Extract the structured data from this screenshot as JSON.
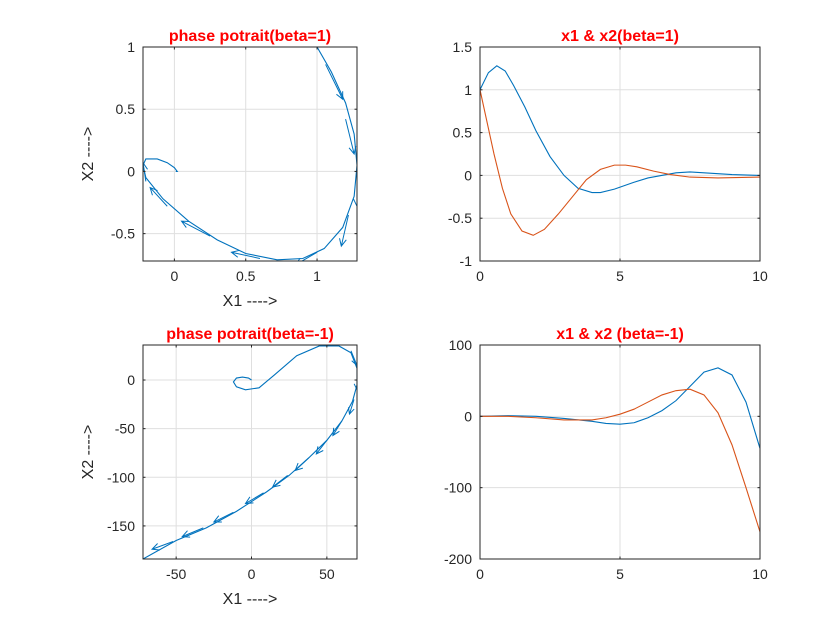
{
  "colors": {
    "title": "#ff0000",
    "series1": "#0072bd",
    "series2": "#d95319",
    "axes": "#262626",
    "grid": "#dfdfdf"
  },
  "chart_data": [
    {
      "id": "phase1",
      "type": "line",
      "title": "phase potrait(beta=1)",
      "xlabel": "X1 ---->",
      "ylabel": "X2 ---->",
      "xlim": [
        -0.22,
        1.28
      ],
      "ylim": [
        -0.72,
        1.0
      ],
      "xticks": [
        0,
        0.5,
        1
      ],
      "xtick_labels": [
        "0",
        "0.5",
        "1"
      ],
      "yticks": [
        -0.5,
        0,
        0.5,
        1
      ],
      "ytick_labels": [
        "-0.5",
        "0",
        "0.5",
        "1"
      ],
      "grid": true,
      "series": [
        {
          "x": [
            1.0,
            1.1,
            1.2,
            1.26,
            1.28,
            1.26,
            1.18,
            1.05,
            0.9,
            0.72,
            0.5,
            0.3,
            0.1,
            -0.08,
            -0.2,
            -0.22,
            -0.2,
            -0.12,
            -0.05,
            0.0,
            0.02,
            0.01
          ],
          "y": [
            1.0,
            0.8,
            0.55,
            0.3,
            0.05,
            -0.2,
            -0.45,
            -0.62,
            -0.7,
            -0.71,
            -0.66,
            -0.55,
            -0.4,
            -0.22,
            -0.05,
            0.05,
            0.1,
            0.1,
            0.07,
            0.03,
            0.0,
            0.0
          ]
        }
      ],
      "arrows": [
        {
          "x": 1.06,
          "y": 0.86,
          "dx": 0.12,
          "dy": -0.28
        },
        {
          "x": 1.2,
          "y": 0.42,
          "dx": 0.06,
          "dy": -0.28
        },
        {
          "x": 1.28,
          "y": 0.0,
          "dx": 0.0,
          "dy": -0.28
        },
        {
          "x": 1.22,
          "y": -0.35,
          "dx": -0.05,
          "dy": -0.25
        },
        {
          "x": 1.0,
          "y": -0.65,
          "dx": -0.15,
          "dy": -0.1
        },
        {
          "x": 0.6,
          "y": -0.7,
          "dx": -0.2,
          "dy": 0.05
        },
        {
          "x": 0.25,
          "y": -0.52,
          "dx": -0.2,
          "dy": 0.12
        },
        {
          "x": -0.05,
          "y": -0.28,
          "dx": -0.12,
          "dy": 0.15
        },
        {
          "x": -0.2,
          "y": -0.08,
          "dx": -0.02,
          "dy": 0.15
        }
      ]
    },
    {
      "id": "time1",
      "type": "line",
      "title": "x1 & x2(beta=1)",
      "xlabel": "",
      "ylabel": "",
      "xlim": [
        0,
        10
      ],
      "ylim": [
        -1,
        1.5
      ],
      "xticks": [
        0,
        5,
        10
      ],
      "xtick_labels": [
        "0",
        "5",
        "10"
      ],
      "yticks": [
        -1,
        -0.5,
        0,
        0.5,
        1,
        1.5
      ],
      "ytick_labels": [
        "-1",
        "-0.5",
        "0",
        "0.5",
        "1",
        "1.5"
      ],
      "grid": true,
      "series": [
        {
          "color": "series1",
          "x": [
            0,
            0.3,
            0.6,
            0.9,
            1.2,
            1.6,
            2.0,
            2.5,
            3.0,
            3.5,
            4.0,
            4.3,
            4.8,
            5.5,
            6.0,
            7.0,
            7.5,
            8.0,
            9.0,
            10.0
          ],
          "y": [
            1.0,
            1.2,
            1.28,
            1.22,
            1.05,
            0.8,
            0.52,
            0.22,
            0.0,
            -0.15,
            -0.2,
            -0.2,
            -0.16,
            -0.08,
            -0.03,
            0.03,
            0.04,
            0.03,
            0.01,
            0.0
          ]
        },
        {
          "color": "series2",
          "x": [
            0,
            0.2,
            0.5,
            0.8,
            1.1,
            1.5,
            1.9,
            2.3,
            2.8,
            3.3,
            3.8,
            4.3,
            4.8,
            5.2,
            5.6,
            6.2,
            6.8,
            7.5,
            8.5,
            10.0
          ],
          "y": [
            1.0,
            0.7,
            0.25,
            -0.15,
            -0.45,
            -0.65,
            -0.7,
            -0.63,
            -0.45,
            -0.25,
            -0.05,
            0.07,
            0.12,
            0.12,
            0.1,
            0.05,
            0.01,
            -0.02,
            -0.03,
            -0.02
          ]
        }
      ]
    },
    {
      "id": "phase2",
      "type": "line",
      "title": "phase potrait(beta=-1)",
      "xlabel": "X1 ---->",
      "ylabel": "X2 ---->",
      "xlim": [
        -72,
        70
      ],
      "ylim": [
        -184,
        36
      ],
      "xticks": [
        -50,
        0,
        50
      ],
      "xtick_labels": [
        "-50",
        "0",
        "50"
      ],
      "yticks": [
        -150,
        -100,
        -50,
        0
      ],
      "ytick_labels": [
        "-150",
        "-100",
        "-50",
        "0"
      ],
      "grid": true,
      "series": [
        {
          "x": [
            0,
            -2,
            -6,
            -10,
            -12,
            -10,
            -4,
            5,
            15,
            30,
            45,
            58,
            66,
            70,
            70,
            67,
            60,
            50,
            38,
            25,
            10,
            -10,
            -30,
            -50,
            -72
          ],
          "y": [
            0,
            2,
            3,
            2,
            -2,
            -7,
            -10,
            -8,
            5,
            25,
            35,
            35,
            28,
            12,
            -5,
            -22,
            -42,
            -62,
            -80,
            -98,
            -115,
            -135,
            -152,
            -165,
            -184
          ]
        }
      ],
      "arrows": [
        {
          "x": 66,
          "y": 30,
          "dx": 4,
          "dy": -15
        },
        {
          "x": 70,
          "y": 5,
          "dx": 0,
          "dy": -15
        },
        {
          "x": 68,
          "y": -20,
          "dx": -3,
          "dy": -15
        },
        {
          "x": 60,
          "y": -42,
          "dx": -6,
          "dy": -15
        },
        {
          "x": 50,
          "y": -62,
          "dx": -7,
          "dy": -14
        },
        {
          "x": 38,
          "y": -80,
          "dx": -9,
          "dy": -13
        },
        {
          "x": 24,
          "y": -98,
          "dx": -10,
          "dy": -12
        },
        {
          "x": 8,
          "y": -116,
          "dx": -12,
          "dy": -11
        },
        {
          "x": -12,
          "y": -136,
          "dx": -13,
          "dy": -10
        },
        {
          "x": -32,
          "y": -152,
          "dx": -14,
          "dy": -9
        },
        {
          "x": -52,
          "y": -166,
          "dx": -14,
          "dy": -8
        }
      ]
    },
    {
      "id": "time2",
      "type": "line",
      "title": "x1 & x2 (beta=-1)",
      "xlabel": "",
      "ylabel": "",
      "xlim": [
        0,
        10
      ],
      "ylim": [
        -200,
        100
      ],
      "xticks": [
        0,
        5,
        10
      ],
      "xtick_labels": [
        "0",
        "5",
        "10"
      ],
      "yticks": [
        -200,
        -100,
        0,
        100
      ],
      "ytick_labels": [
        "-200",
        "-100",
        "0",
        "100"
      ],
      "grid": true,
      "series": [
        {
          "color": "series1",
          "x": [
            0,
            1.0,
            2.0,
            3.0,
            4.0,
            4.5,
            5.0,
            5.5,
            6.0,
            6.5,
            7.0,
            7.5,
            8.0,
            8.5,
            9.0,
            9.5,
            10.0
          ],
          "y": [
            0,
            1,
            0,
            -3,
            -7,
            -10,
            -11,
            -9,
            -2,
            8,
            22,
            42,
            62,
            68,
            58,
            20,
            -45
          ]
        },
        {
          "color": "series2",
          "x": [
            0,
            1.0,
            2.0,
            3.0,
            4.0,
            4.5,
            5.0,
            5.5,
            6.0,
            6.5,
            7.0,
            7.5,
            8.0,
            8.5,
            9.0,
            9.5,
            10.0
          ],
          "y": [
            0,
            0,
            -2,
            -5,
            -5,
            -2,
            3,
            10,
            20,
            30,
            36,
            38,
            30,
            5,
            -40,
            -100,
            -162
          ]
        }
      ]
    }
  ]
}
